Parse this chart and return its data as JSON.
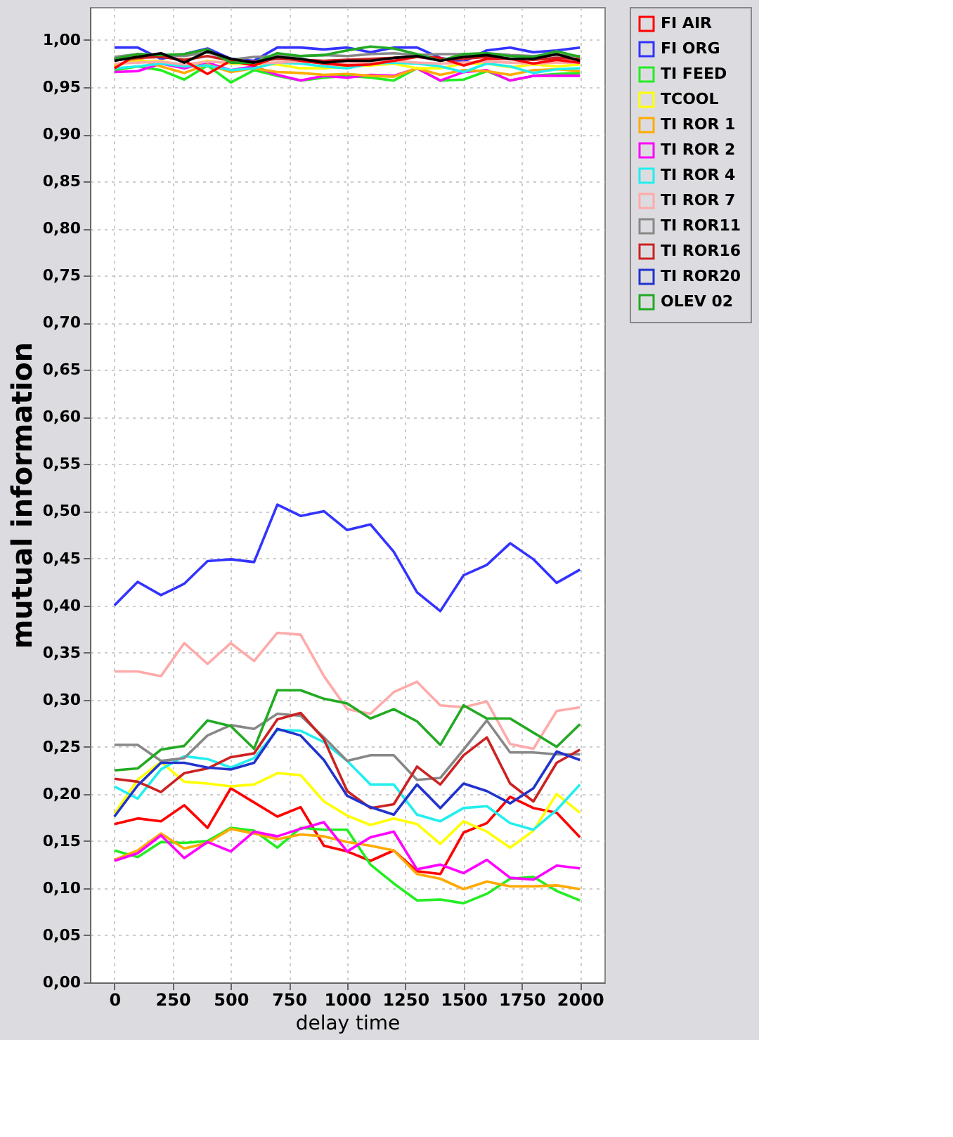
{
  "chart_data": {
    "type": "line",
    "xlabel": "delay time",
    "ylabel": "mutual information",
    "x": [
      0,
      100,
      200,
      300,
      400,
      500,
      600,
      700,
      800,
      900,
      1000,
      1100,
      1200,
      1300,
      1400,
      1500,
      1600,
      1700,
      1800,
      1900,
      2000
    ],
    "xlim": [
      -105,
      2105
    ],
    "xticks": [
      0,
      250,
      500,
      750,
      1000,
      1250,
      1500,
      1750,
      2000
    ],
    "ylim": [
      0,
      1.035
    ],
    "yticks": [
      {
        "value": 0,
        "label": "0,00"
      },
      {
        "value": 0.05,
        "label": "0,05"
      },
      {
        "value": 0.1,
        "label": "0,10"
      },
      {
        "value": 0.15,
        "label": "0,15"
      },
      {
        "value": 0.2,
        "label": "0,20"
      },
      {
        "value": 0.25,
        "label": "0,25"
      },
      {
        "value": 0.3,
        "label": "0,30"
      },
      {
        "value": 0.35,
        "label": "0,35"
      },
      {
        "value": 0.4,
        "label": "0,40"
      },
      {
        "value": 0.45,
        "label": "0,45"
      },
      {
        "value": 0.5,
        "label": "0,50"
      },
      {
        "value": 0.55,
        "label": "0,55"
      },
      {
        "value": 0.6,
        "label": "0,60"
      },
      {
        "value": 0.65,
        "label": "0,65"
      },
      {
        "value": 0.7,
        "label": "0,70"
      },
      {
        "value": 0.75,
        "label": "0,75"
      },
      {
        "value": 0.8,
        "label": "0,80"
      },
      {
        "value": 0.85,
        "label": "0,85"
      },
      {
        "value": 0.9,
        "label": "0,90"
      },
      {
        "value": 0.95,
        "label": "0,95"
      },
      {
        "value": 1.0,
        "label": "1,00"
      }
    ],
    "grid": true,
    "legend": "right",
    "marker": "none",
    "line_style": "solid",
    "series": [
      {
        "name": "FI AIR",
        "color": "#ff0000",
        "values": [
          0.168,
          0.174,
          0.171,
          0.188,
          0.164,
          0.206,
          0.191,
          0.176,
          0.186,
          0.145,
          0.139,
          0.129,
          0.14,
          0.118,
          0.115,
          0.159,
          0.169,
          0.197,
          0.185,
          0.18,
          0.154
        ]
      },
      {
        "name": "FI ORG",
        "color": "#3333ff",
        "values": [
          0.4,
          0.425,
          0.411,
          0.423,
          0.447,
          0.449,
          0.446,
          0.507,
          0.495,
          0.5,
          0.48,
          0.486,
          0.457,
          0.414,
          0.394,
          0.432,
          0.443,
          0.466,
          0.449,
          0.424,
          0.438
        ]
      },
      {
        "name": "TI FEED",
        "color": "#22ee22",
        "values": [
          0.14,
          0.133,
          0.149,
          0.148,
          0.15,
          0.164,
          0.161,
          0.143,
          0.164,
          0.162,
          0.162,
          0.125,
          0.105,
          0.087,
          0.088,
          0.084,
          0.094,
          0.11,
          0.112,
          0.097,
          0.087
        ]
      },
      {
        "name": "TCOOL",
        "color": "#ffff00",
        "values": [
          0.179,
          0.215,
          0.234,
          0.213,
          0.211,
          0.208,
          0.21,
          0.222,
          0.22,
          0.192,
          0.177,
          0.167,
          0.174,
          0.168,
          0.147,
          0.171,
          0.16,
          0.143,
          0.161,
          0.2,
          0.18
        ]
      },
      {
        "name": "TI ROR 1",
        "color": "#ffaa00",
        "values": [
          0.13,
          0.14,
          0.158,
          0.142,
          0.148,
          0.163,
          0.158,
          0.152,
          0.157,
          0.155,
          0.149,
          0.145,
          0.14,
          0.115,
          0.11,
          0.099,
          0.107,
          0.102,
          0.102,
          0.103,
          0.099
        ]
      },
      {
        "name": "TI ROR 2",
        "color": "#ff00ff",
        "values": [
          0.129,
          0.137,
          0.156,
          0.132,
          0.149,
          0.139,
          0.16,
          0.155,
          0.163,
          0.17,
          0.139,
          0.154,
          0.16,
          0.12,
          0.125,
          0.116,
          0.13,
          0.111,
          0.109,
          0.124,
          0.121
        ]
      },
      {
        "name": "TI ROR 4",
        "color": "#22eeee",
        "values": [
          0.208,
          0.195,
          0.226,
          0.24,
          0.237,
          0.228,
          0.238,
          0.268,
          0.267,
          0.255,
          0.235,
          0.21,
          0.21,
          0.178,
          0.171,
          0.185,
          0.187,
          0.169,
          0.162,
          0.183,
          0.21
        ]
      },
      {
        "name": "TI ROR 7",
        "color": "#ffaaaa",
        "values": [
          0.33,
          0.33,
          0.325,
          0.36,
          0.338,
          0.36,
          0.341,
          0.371,
          0.369,
          0.325,
          0.29,
          0.285,
          0.308,
          0.319,
          0.294,
          0.292,
          0.298,
          0.253,
          0.248,
          0.288,
          0.292
        ]
      },
      {
        "name": "TI ROR11",
        "color": "#888888",
        "values": [
          0.252,
          0.252,
          0.235,
          0.238,
          0.262,
          0.273,
          0.269,
          0.285,
          0.283,
          0.26,
          0.235,
          0.241,
          0.241,
          0.215,
          0.217,
          0.247,
          0.278,
          0.244,
          0.244,
          0.242,
          0.242
        ]
      },
      {
        "name": "TI ROR16",
        "color": "#cc2222",
        "values": [
          0.216,
          0.213,
          0.202,
          0.222,
          0.227,
          0.239,
          0.243,
          0.279,
          0.286,
          0.258,
          0.203,
          0.185,
          0.189,
          0.229,
          0.21,
          0.241,
          0.26,
          0.211,
          0.192,
          0.233,
          0.247
        ]
      },
      {
        "name": "TI ROR20",
        "color": "#2233cc",
        "values": [
          0.176,
          0.209,
          0.233,
          0.233,
          0.228,
          0.226,
          0.233,
          0.269,
          0.262,
          0.236,
          0.198,
          0.186,
          0.178,
          0.21,
          0.185,
          0.211,
          0.203,
          0.19,
          0.206,
          0.245,
          0.236
        ]
      },
      {
        "name": "OLEV 02",
        "color": "#22aa22",
        "values": [
          0.225,
          0.227,
          0.247,
          0.251,
          0.278,
          0.272,
          0.248,
          0.31,
          0.31,
          0.301,
          0.296,
          0.28,
          0.29,
          0.277,
          0.252,
          0.294,
          0.28,
          0.28,
          0.265,
          0.25,
          0.274
        ]
      },
      {
        "color": "#3333ff",
        "values": [
          0.992,
          0.992,
          0.98,
          0.985,
          0.991,
          0.98,
          0.978,
          0.992,
          0.992,
          0.99,
          0.992,
          0.987,
          0.992,
          0.992,
          0.981,
          0.977,
          0.989,
          0.992,
          0.987,
          0.989,
          0.992
        ]
      },
      {
        "color": "#22ee22",
        "values": [
          0.968,
          0.972,
          0.968,
          0.958,
          0.973,
          0.955,
          0.968,
          0.962,
          0.957,
          0.96,
          0.962,
          0.96,
          0.957,
          0.97,
          0.957,
          0.958,
          0.967,
          0.957,
          0.962,
          0.964,
          0.965
        ]
      },
      {
        "color": "#ff00ff",
        "values": [
          0.966,
          0.967,
          0.975,
          0.97,
          0.976,
          0.968,
          0.972,
          0.963,
          0.957,
          0.962,
          0.96,
          0.963,
          0.962,
          0.97,
          0.957,
          0.966,
          0.968,
          0.957,
          0.962,
          0.962,
          0.962
        ]
      },
      {
        "color": "#ffaa00",
        "values": [
          0.972,
          0.98,
          0.972,
          0.965,
          0.974,
          0.966,
          0.97,
          0.966,
          0.965,
          0.963,
          0.964,
          0.962,
          0.961,
          0.97,
          0.963,
          0.968,
          0.967,
          0.963,
          0.968,
          0.969,
          0.967
        ]
      },
      {
        "color": "#ffff00",
        "values": [
          0.974,
          0.977,
          0.978,
          0.972,
          0.978,
          0.975,
          0.974,
          0.974,
          0.97,
          0.97,
          0.972,
          0.973,
          0.975,
          0.97,
          0.97,
          0.975,
          0.975,
          0.971,
          0.974,
          0.972,
          0.974
        ]
      },
      {
        "color": "#22eeee",
        "values": [
          0.97,
          0.972,
          0.975,
          0.972,
          0.973,
          0.968,
          0.97,
          0.976,
          0.975,
          0.972,
          0.97,
          0.975,
          0.976,
          0.975,
          0.972,
          0.966,
          0.975,
          0.972,
          0.965,
          0.969,
          0.97
        ]
      },
      {
        "color": "#ffaaaa",
        "values": [
          0.975,
          0.976,
          0.977,
          0.974,
          0.977,
          0.976,
          0.975,
          0.976,
          0.977,
          0.976,
          0.975,
          0.977,
          0.978,
          0.976,
          0.975,
          0.976,
          0.977,
          0.976,
          0.975,
          0.976,
          0.976
        ]
      },
      {
        "color": "#888888",
        "values": [
          0.982,
          0.985,
          0.984,
          0.983,
          0.987,
          0.979,
          0.982,
          0.983,
          0.983,
          0.984,
          0.983,
          0.985,
          0.986,
          0.984,
          0.985,
          0.985,
          0.986,
          0.984,
          0.983,
          0.984,
          0.983
        ]
      },
      {
        "color": "#ff0000",
        "values": [
          0.97,
          0.985,
          0.983,
          0.978,
          0.964,
          0.978,
          0.973,
          0.982,
          0.978,
          0.975,
          0.973,
          0.974,
          0.978,
          0.982,
          0.981,
          0.973,
          0.98,
          0.98,
          0.975,
          0.979,
          0.976
        ]
      },
      {
        "color": "#cc2222",
        "values": [
          0.979,
          0.981,
          0.982,
          0.979,
          0.983,
          0.978,
          0.977,
          0.98,
          0.979,
          0.978,
          0.979,
          0.98,
          0.981,
          0.982,
          0.979,
          0.98,
          0.982,
          0.98,
          0.979,
          0.981,
          0.98
        ]
      },
      {
        "color": "#22aa22",
        "values": [
          0.98,
          0.985,
          0.984,
          0.985,
          0.99,
          0.976,
          0.976,
          0.986,
          0.983,
          0.984,
          0.989,
          0.993,
          0.991,
          0.985,
          0.978,
          0.985,
          0.986,
          0.983,
          0.982,
          0.988,
          0.982
        ]
      },
      {
        "color": "#000000",
        "values": [
          0.978,
          0.982,
          0.986,
          0.976,
          0.988,
          0.98,
          0.976,
          0.982,
          0.98,
          0.976,
          0.978,
          0.978,
          0.981,
          0.983,
          0.978,
          0.982,
          0.984,
          0.98,
          0.98,
          0.985,
          0.978
        ]
      }
    ]
  }
}
